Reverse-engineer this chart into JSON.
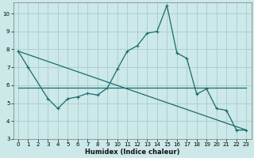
{
  "xlabel": "Humidex (Indice chaleur)",
  "bg_color": "#cce8e8",
  "grid_color": "#aad0d0",
  "line_color": "#1a6b6b",
  "x_ticks": [
    0,
    1,
    2,
    3,
    4,
    5,
    6,
    7,
    8,
    9,
    10,
    11,
    12,
    13,
    14,
    15,
    16,
    17,
    18,
    19,
    20,
    21,
    22,
    23
  ],
  "ylim": [
    3,
    10.6
  ],
  "xlim": [
    -0.5,
    23.5
  ],
  "yticks": [
    3,
    4,
    5,
    6,
    7,
    8,
    9,
    10
  ],
  "line1_x": [
    0,
    1,
    3,
    4,
    5,
    6,
    7,
    8,
    9,
    10,
    11,
    12,
    13,
    14,
    15,
    16,
    17,
    18,
    19,
    20,
    21,
    22,
    23
  ],
  "line1_y": [
    7.9,
    7.0,
    5.25,
    4.7,
    5.25,
    5.35,
    5.55,
    5.45,
    5.85,
    6.9,
    7.9,
    8.2,
    8.9,
    9.0,
    10.45,
    7.8,
    7.5,
    5.5,
    5.8,
    4.7,
    4.6,
    3.5,
    3.5
  ],
  "line2_x": [
    0,
    23
  ],
  "line2_y": [
    7.9,
    3.5
  ],
  "line3_x": [
    0,
    19,
    23
  ],
  "line3_y": [
    5.85,
    5.85,
    5.85
  ]
}
